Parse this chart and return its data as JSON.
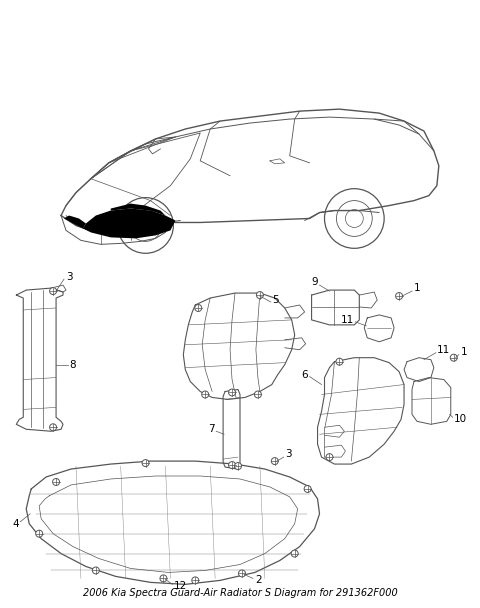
{
  "title": "2006 Kia Spectra Guard-Air Radiator S Diagram for 291362F000",
  "bg_color": "#ffffff",
  "fig_width": 4.8,
  "fig_height": 6.08,
  "dpi": 100,
  "line_color": "#555555",
  "label_fontsize": 7.5,
  "title_fontsize": 7
}
